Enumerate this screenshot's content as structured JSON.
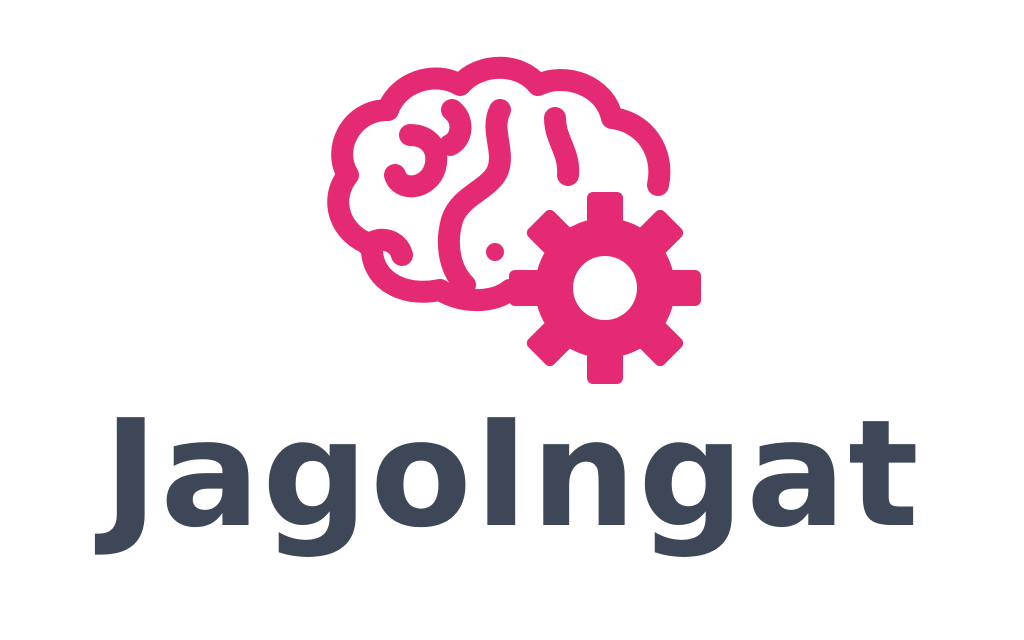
{
  "brand": {
    "name": "JagoIngat",
    "icon": "brain-gear-icon",
    "colors": {
      "accent": "#e52a74",
      "text": "#3d4757",
      "background": "#ffffff"
    }
  }
}
